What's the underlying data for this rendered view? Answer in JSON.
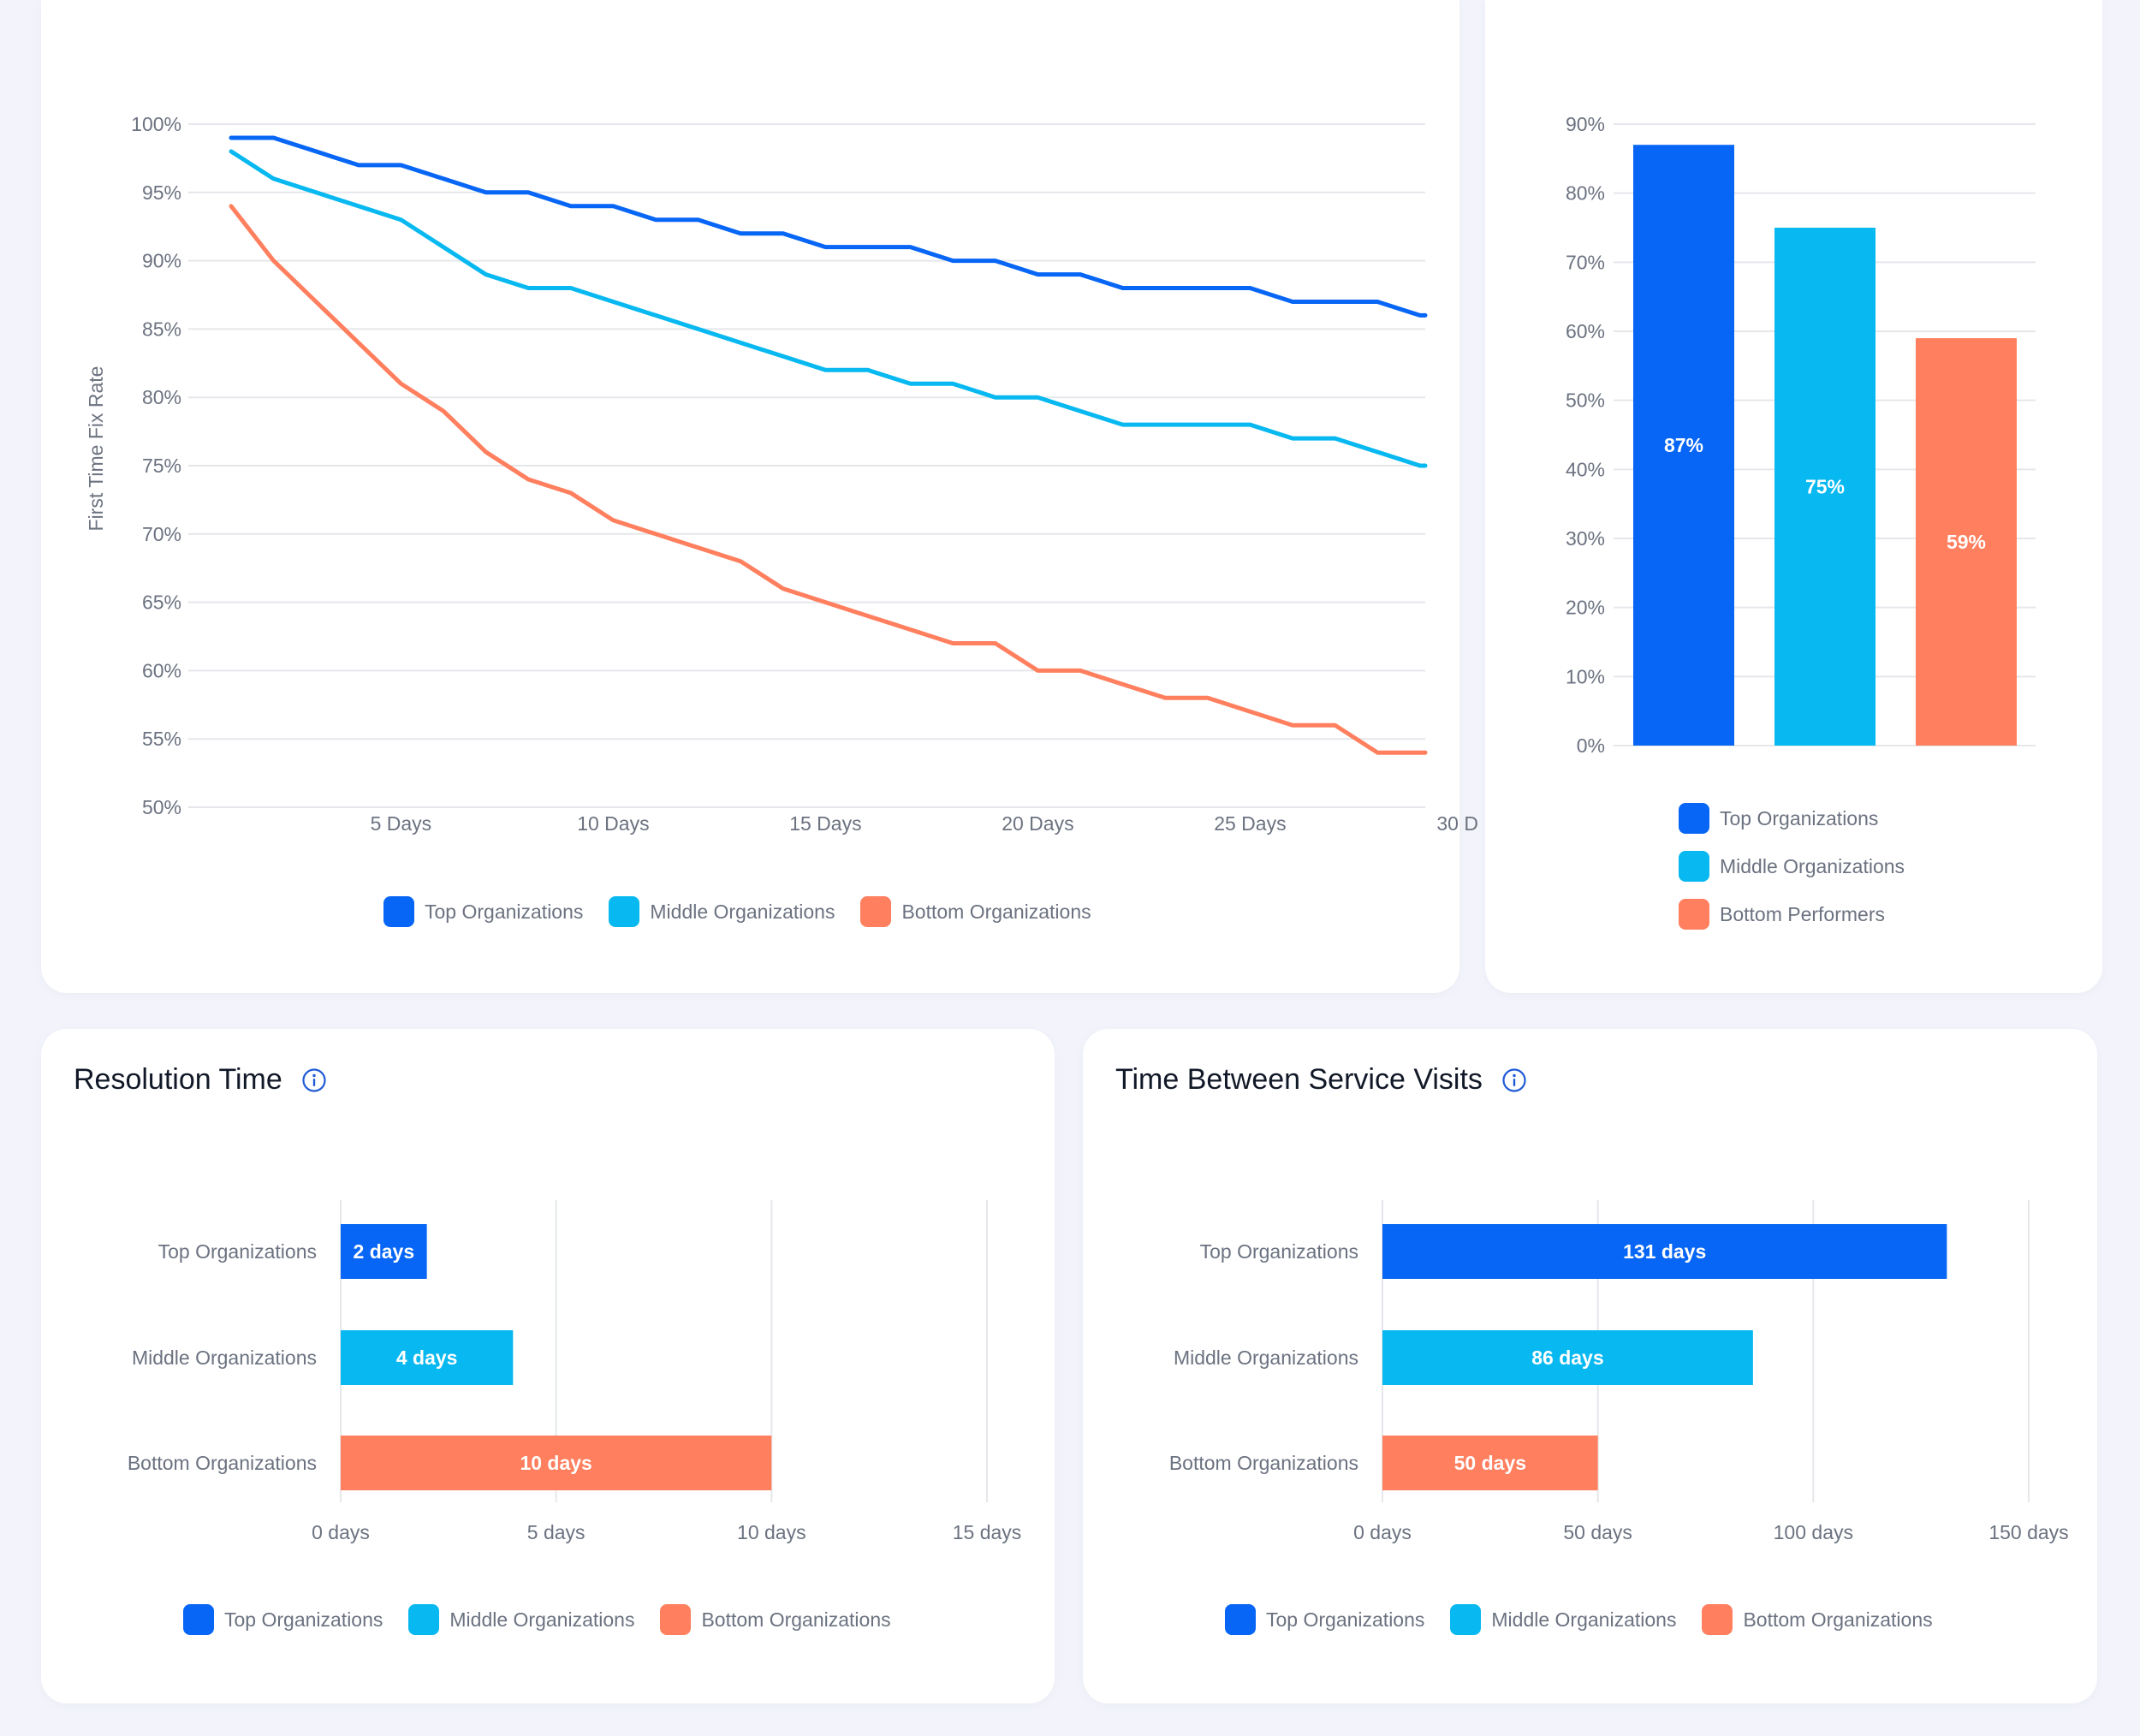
{
  "colors": {
    "top": "#0766f5",
    "middle": "#08b8f0",
    "bottom": "#ff7f5e",
    "accent": "#1f5bd6"
  },
  "chart_data": [
    {
      "id": "ftfr-trend",
      "type": "line",
      "title": "",
      "ylabel": "First Time Fix Rate",
      "xlabel": "",
      "ylim": [
        50,
        100
      ],
      "y_ticks": [
        "50%",
        "55%",
        "60%",
        "65%",
        "70%",
        "75%",
        "80%",
        "85%",
        "90%",
        "95%",
        "100%"
      ],
      "x_ticks": [
        "5 Days",
        "10 Days",
        "15 Days",
        "20 Days",
        "25 Days",
        "30 D"
      ],
      "x": [
        1,
        2,
        3,
        4,
        5,
        6,
        7,
        8,
        9,
        10,
        11,
        12,
        13,
        14,
        15,
        16,
        17,
        18,
        19,
        20,
        21,
        22,
        23,
        24,
        25,
        26,
        27,
        28,
        29,
        30
      ],
      "series": [
        {
          "name": "Top Organizations",
          "color": "#0766f5",
          "values": [
            99,
            99,
            98,
            97,
            97,
            96,
            95,
            95,
            94,
            94,
            93,
            93,
            92,
            92,
            91,
            91,
            91,
            90,
            90,
            89,
            89,
            88,
            88,
            88,
            88,
            87,
            87,
            87,
            86,
            86
          ]
        },
        {
          "name": "Middle Organizations",
          "color": "#08b8f0",
          "values": [
            98,
            96,
            95,
            94,
            93,
            91,
            89,
            88,
            88,
            87,
            86,
            85,
            84,
            83,
            82,
            82,
            81,
            81,
            80,
            80,
            79,
            78,
            78,
            78,
            78,
            77,
            77,
            76,
            75,
            75
          ]
        },
        {
          "name": "Bottom Organizations",
          "color": "#ff7f5e",
          "values": [
            94,
            90,
            87,
            84,
            81,
            79,
            76,
            74,
            73,
            71,
            70,
            69,
            68,
            66,
            65,
            64,
            63,
            62,
            62,
            60,
            60,
            59,
            58,
            58,
            57,
            56,
            56,
            54,
            54,
            54
          ]
        }
      ],
      "legend": [
        "Top Organizations",
        "Middle Organizations",
        "Bottom Organizations"
      ]
    },
    {
      "id": "ftfr-summary",
      "type": "bar",
      "ylim": [
        0,
        90
      ],
      "y_ticks": [
        "0%",
        "10%",
        "20%",
        "30%",
        "40%",
        "50%",
        "60%",
        "70%",
        "80%",
        "90%"
      ],
      "categories": [
        "Top Organizations",
        "Middle Organizations",
        "Bottom Performers"
      ],
      "values": [
        87,
        75,
        59
      ],
      "labels": [
        "87%",
        "75%",
        "59%"
      ],
      "legend": [
        "Top Organizations",
        "Middle Organizations",
        "Bottom Performers"
      ]
    },
    {
      "id": "resolution-time",
      "type": "bar",
      "orientation": "horizontal",
      "title": "Resolution Time",
      "xlim": [
        0,
        15
      ],
      "x_ticks": [
        "0 days",
        "5 days",
        "10 days",
        "15 days"
      ],
      "categories": [
        "Top Organizations",
        "Middle Organizations",
        "Bottom Organizations"
      ],
      "values": [
        2,
        4,
        10
      ],
      "labels": [
        "2 days",
        "4 days",
        "10 days"
      ],
      "legend": [
        "Top Organizations",
        "Middle Organizations",
        "Bottom Organizations"
      ]
    },
    {
      "id": "time-between-visits",
      "type": "bar",
      "orientation": "horizontal",
      "title": "Time Between Service Visits",
      "xlim": [
        0,
        150
      ],
      "x_ticks": [
        "0 days",
        "50 days",
        "100 days",
        "150 days"
      ],
      "categories": [
        "Top Organizations",
        "Middle Organizations",
        "Bottom Organizations"
      ],
      "values": [
        131,
        86,
        50
      ],
      "labels": [
        "131 days",
        "86 days",
        "50 days"
      ],
      "legend": [
        "Top Organizations",
        "Middle Organizations",
        "Bottom Organizations"
      ]
    }
  ]
}
